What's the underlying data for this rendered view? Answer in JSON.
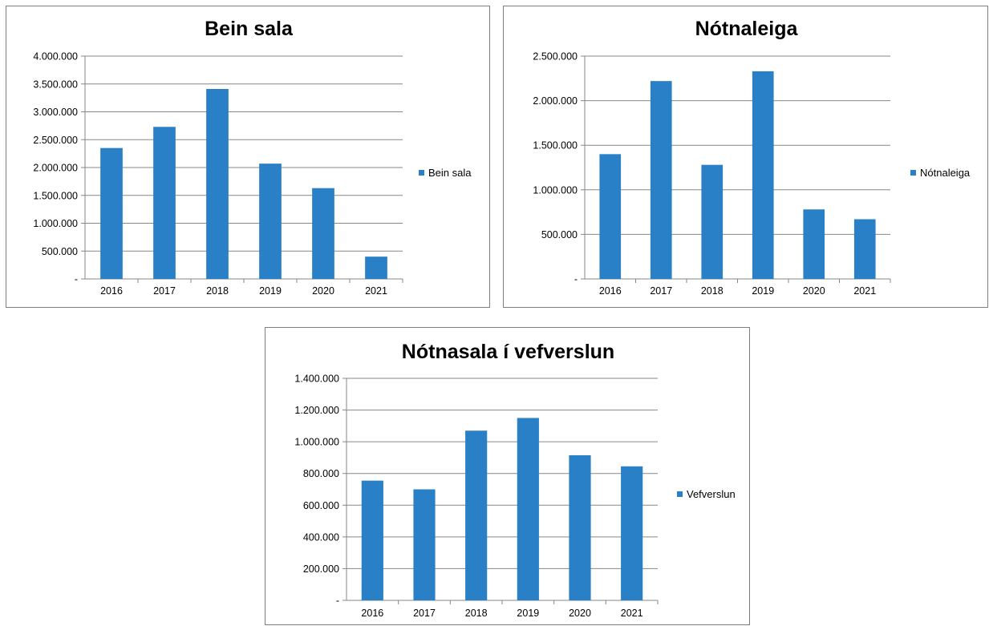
{
  "colors": {
    "bar": "#2980c6",
    "gridline": "#878787",
    "axis": "#878787",
    "border": "#7f7f7f"
  },
  "chart_data": [
    {
      "type": "bar",
      "title": "Bein sala",
      "categories": [
        "2016",
        "2017",
        "2018",
        "2019",
        "2020",
        "2021"
      ],
      "series": [
        {
          "name": "Bein sala",
          "values": [
            2350000,
            2730000,
            3410000,
            2070000,
            1630000,
            400000
          ]
        }
      ],
      "yticks": [
        0,
        500000,
        1000000,
        1500000,
        2000000,
        2500000,
        3000000,
        3500000,
        4000000
      ],
      "ytick_labels": [
        "-",
        "500.000",
        "1.000.000",
        "1.500.000",
        "2.000.000",
        "2.500.000",
        "3.000.000",
        "3.500.000",
        "4.000.000"
      ],
      "ylim": [
        0,
        4000000
      ],
      "xlabel": "",
      "ylabel": "",
      "grid": true,
      "legend": "right"
    },
    {
      "type": "bar",
      "title": "Nótnaleiga",
      "categories": [
        "2016",
        "2017",
        "2018",
        "2019",
        "2020",
        "2021"
      ],
      "series": [
        {
          "name": "Nótnaleiga",
          "values": [
            1400000,
            2220000,
            1280000,
            2330000,
            780000,
            670000
          ]
        }
      ],
      "yticks": [
        0,
        500000,
        1000000,
        1500000,
        2000000,
        2500000
      ],
      "ytick_labels": [
        "-",
        "500.000",
        "1.000.000",
        "1.500.000",
        "2.000.000",
        "2.500.000"
      ],
      "ylim": [
        0,
        2500000
      ],
      "xlabel": "",
      "ylabel": "",
      "grid": true,
      "legend": "right"
    },
    {
      "type": "bar",
      "title": "Nótnasala í vefverslun",
      "categories": [
        "2016",
        "2017",
        "2018",
        "2019",
        "2020",
        "2021"
      ],
      "series": [
        {
          "name": "Vefverslun",
          "values": [
            755000,
            700000,
            1070000,
            1150000,
            915000,
            845000
          ]
        }
      ],
      "yticks": [
        0,
        200000,
        400000,
        600000,
        800000,
        1000000,
        1200000,
        1400000
      ],
      "ytick_labels": [
        "-",
        "200.000",
        "400.000",
        "600.000",
        "800.000",
        "1.000.000",
        "1.200.000",
        "1.400.000"
      ],
      "ylim": [
        0,
        1400000
      ],
      "xlabel": "",
      "ylabel": "",
      "grid": true,
      "legend": "right"
    }
  ]
}
